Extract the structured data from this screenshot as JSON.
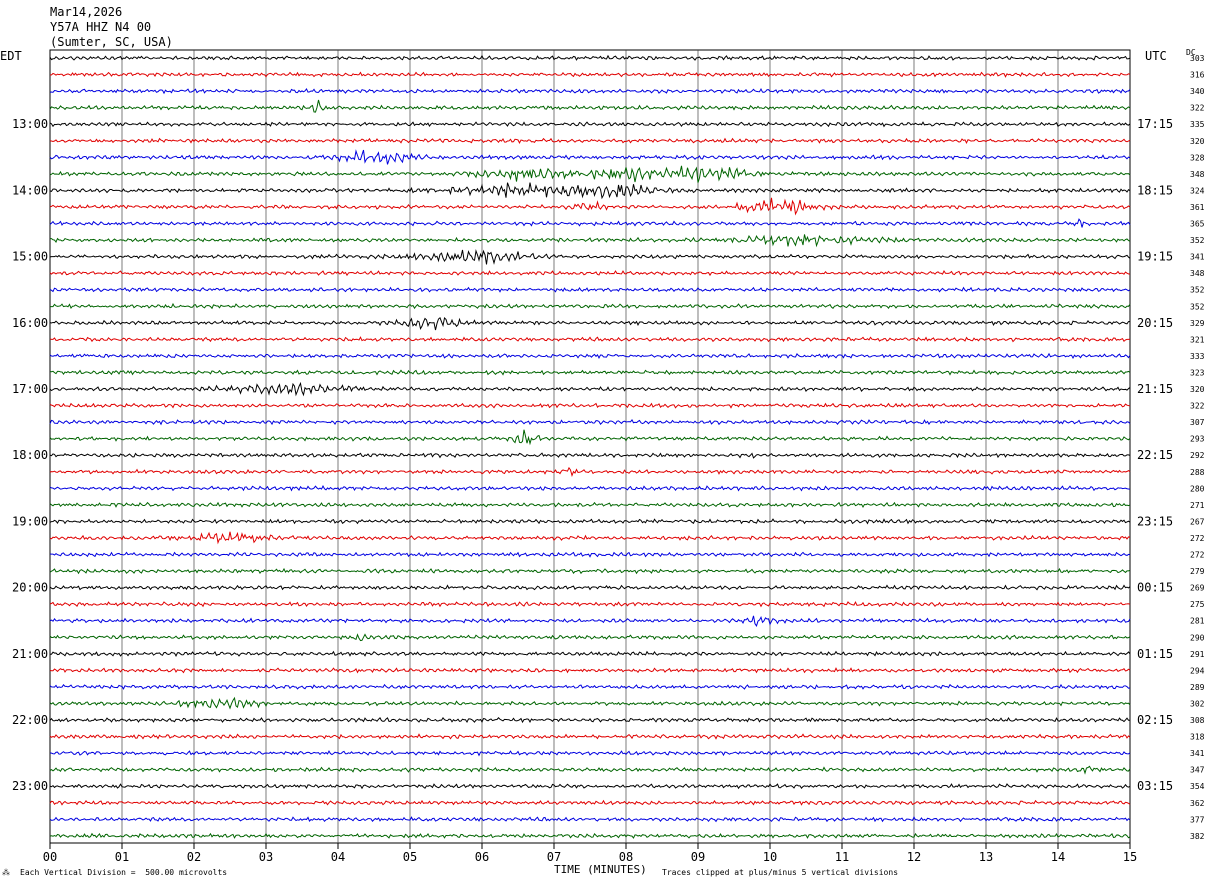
{
  "header": {
    "date": "Mar14,2026",
    "station": "Y57A HHZ N4 00",
    "location": "(Sumter, SC, USA)",
    "left_zone": "EDT",
    "right_zone": "UTC",
    "dc_label": "DC"
  },
  "footer": {
    "scale_note": "Each Vertical Division =  500.00 microvolts",
    "clip_note": "Traces clipped at plus/minus 5 vertical divisions",
    "corner_mark": "⁂"
  },
  "chart_data": {
    "type": "line",
    "title": "Mar14,2026 Y57A HHZ N4 00 (Sumter, SC, USA)",
    "xlabel": "TIME (MINUTES)",
    "xlim": [
      0,
      15
    ],
    "x_ticks": [
      "00",
      "01",
      "02",
      "03",
      "04",
      "05",
      "06",
      "07",
      "08",
      "09",
      "10",
      "11",
      "12",
      "13",
      "14",
      "15"
    ],
    "grid": true,
    "trace_colors": [
      "#000000",
      "#e00000",
      "#0000e0",
      "#006400"
    ],
    "left_hour_labels": [
      "13:00",
      "14:00",
      "15:00",
      "16:00",
      "17:00",
      "18:00",
      "19:00",
      "20:00",
      "21:00",
      "22:00",
      "23:00"
    ],
    "right_hour_labels": [
      "17:15",
      "18:15",
      "19:15",
      "20:15",
      "21:15",
      "22:15",
      "23:15",
      "00:15",
      "01:15",
      "02:15",
      "03:15"
    ],
    "dc_offsets": [
      303,
      316,
      340,
      322,
      335,
      320,
      328,
      348,
      324,
      361,
      365,
      352,
      341,
      348,
      352,
      352,
      329,
      321,
      333,
      323,
      320,
      322,
      307,
      293,
      292,
      288,
      280,
      271,
      267,
      272,
      272,
      279,
      269,
      275,
      281,
      290,
      291,
      294,
      289,
      302,
      308,
      318,
      341,
      347,
      354,
      362,
      377,
      382
    ],
    "events": [
      {
        "trace": 3,
        "minute": 3.7,
        "amplitude": 2.2,
        "width": 0.08
      },
      {
        "trace": 6,
        "minute": 4.5,
        "amplitude": 1.8,
        "width": 0.5
      },
      {
        "trace": 7,
        "minute": 6.6,
        "amplitude": 1.8,
        "width": 0.6
      },
      {
        "trace": 7,
        "minute": 8.2,
        "amplitude": 2.0,
        "width": 0.8
      },
      {
        "trace": 7,
        "minute": 9.2,
        "amplitude": 1.6,
        "width": 0.5
      },
      {
        "trace": 8,
        "minute": 6.3,
        "amplitude": 2.0,
        "width": 0.8
      },
      {
        "trace": 8,
        "minute": 7.7,
        "amplitude": 2.0,
        "width": 0.7
      },
      {
        "trace": 9,
        "minute": 7.5,
        "amplitude": 1.8,
        "width": 0.2
      },
      {
        "trace": 9,
        "minute": 10.1,
        "amplitude": 2.6,
        "width": 0.5
      },
      {
        "trace": 10,
        "minute": 14.3,
        "amplitude": 1.4,
        "width": 0.08
      },
      {
        "trace": 11,
        "minute": 10.5,
        "amplitude": 1.5,
        "width": 0.9
      },
      {
        "trace": 12,
        "minute": 5.9,
        "amplitude": 1.9,
        "width": 0.7
      },
      {
        "trace": 16,
        "minute": 5.3,
        "amplitude": 1.8,
        "width": 0.4
      },
      {
        "trace": 20,
        "minute": 3.3,
        "amplitude": 1.6,
        "width": 0.8
      },
      {
        "trace": 23,
        "minute": 6.6,
        "amplitude": 3.2,
        "width": 0.15
      },
      {
        "trace": 24,
        "minute": 9.7,
        "amplitude": 1.4,
        "width": 0.1
      },
      {
        "trace": 25,
        "minute": 7.2,
        "amplitude": 1.5,
        "width": 0.1
      },
      {
        "trace": 29,
        "minute": 2.5,
        "amplitude": 1.5,
        "width": 0.6
      },
      {
        "trace": 34,
        "minute": 9.8,
        "amplitude": 1.8,
        "width": 0.2
      },
      {
        "trace": 35,
        "minute": 4.3,
        "amplitude": 1.4,
        "width": 0.06
      },
      {
        "trace": 39,
        "minute": 2.4,
        "amplitude": 1.7,
        "width": 0.5
      },
      {
        "trace": 43,
        "minute": 14.4,
        "amplitude": 1.4,
        "width": 0.06
      }
    ]
  }
}
